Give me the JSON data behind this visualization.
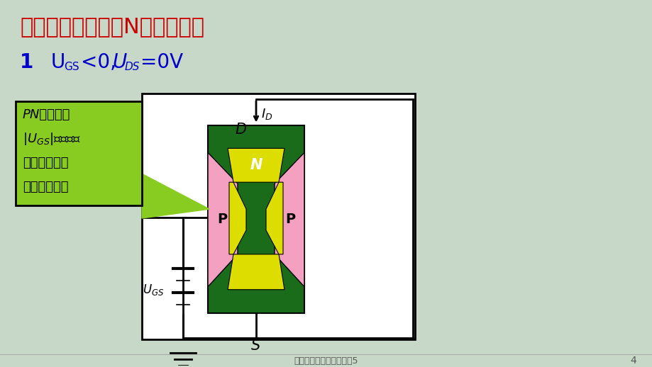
{
  "bg_color": "#c8d8c8",
  "title1": "二、工作原理（以N沟道为例）",
  "title1_color": "#cc0000",
  "title2_color": "#0000cc",
  "slide_number": "4",
  "footer_text": "晶体管及其小信号放大器5",
  "annotation_bg": "#88cc22",
  "dark_green": "#1a6b1a",
  "pink": "#f4a0c0",
  "yellow": "#dddd00",
  "white": "#ffffff",
  "black": "#000000"
}
